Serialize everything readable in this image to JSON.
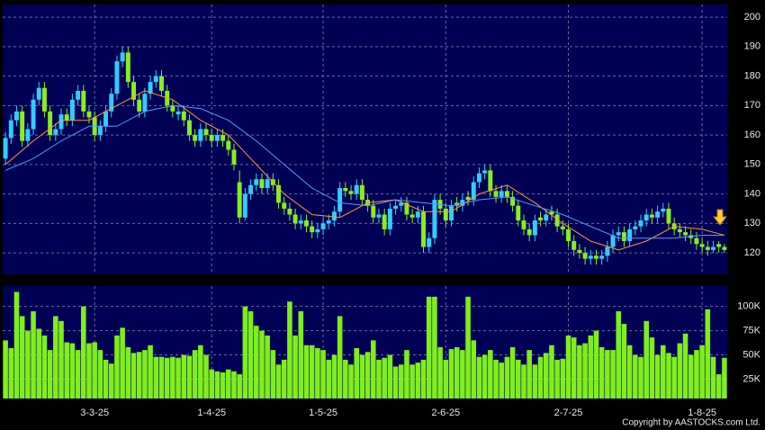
{
  "chart_data": [
    {
      "type": "candlestick",
      "up_color": "#33ccff",
      "down_color": "#88ee22",
      "grid": true,
      "categories": [
        null,
        null,
        null,
        null,
        null,
        null,
        null,
        null,
        null,
        null,
        null,
        null,
        null,
        null,
        null,
        null,
        "3-3-25",
        null,
        null,
        null,
        null,
        null,
        null,
        null,
        null,
        null,
        null,
        null,
        null,
        null,
        null,
        null,
        null,
        null,
        null,
        null,
        null,
        "1-4-25",
        null,
        null,
        null,
        null,
        null,
        null,
        null,
        null,
        null,
        null,
        null,
        null,
        null,
        null,
        null,
        null,
        null,
        null,
        null,
        "1-5-25",
        null,
        null,
        null,
        null,
        null,
        null,
        null,
        null,
        null,
        null,
        null,
        null,
        null,
        null,
        null,
        null,
        null,
        null,
        null,
        null,
        null,
        "2-6-25",
        null,
        null,
        null,
        null,
        null,
        null,
        null,
        null,
        null,
        null,
        null,
        null,
        null,
        null,
        null,
        null,
        null,
        null,
        null,
        null,
        null,
        "2-7-25",
        null,
        null,
        null,
        null,
        null,
        null,
        null,
        null,
        null,
        null,
        null,
        null,
        null,
        null,
        null,
        null,
        null,
        null,
        null,
        null,
        null,
        null,
        null,
        "1-8-25",
        null,
        null,
        null,
        null
      ],
      "values": [
        [
          152,
          161,
          150,
          159
        ],
        [
          159,
          167,
          157,
          165
        ],
        [
          165,
          170,
          163,
          168
        ],
        [
          168,
          170,
          156,
          158
        ],
        [
          158,
          164,
          156,
          162
        ],
        [
          162,
          174,
          160,
          172
        ],
        [
          172,
          178,
          170,
          176
        ],
        [
          176,
          178,
          166,
          168
        ],
        [
          168,
          170,
          158,
          160
        ],
        [
          160,
          164,
          158,
          162
        ],
        [
          162,
          169,
          160,
          167
        ],
        [
          167,
          169,
          163,
          165
        ],
        [
          165,
          174,
          163,
          172
        ],
        [
          172,
          177,
          170,
          175
        ],
        [
          175,
          177,
          166,
          168
        ],
        [
          168,
          170,
          164,
          166
        ],
        [
          166,
          168,
          158,
          160
        ],
        [
          160,
          165,
          158,
          163
        ],
        [
          163,
          170,
          161,
          168
        ],
        [
          168,
          176,
          166,
          174
        ],
        [
          174,
          187,
          172,
          185
        ],
        [
          185,
          190,
          183,
          188
        ],
        [
          188,
          190,
          176,
          178
        ],
        [
          178,
          180,
          170,
          172
        ],
        [
          172,
          174,
          166,
          168
        ],
        [
          168,
          176,
          166,
          174
        ],
        [
          174,
          180,
          172,
          178
        ],
        [
          178,
          182,
          176,
          180
        ],
        [
          180,
          182,
          173,
          175
        ],
        [
          175,
          177,
          168,
          170
        ],
        [
          170,
          172,
          166,
          168
        ],
        [
          167,
          170,
          165,
          168
        ],
        [
          168,
          170,
          163,
          165
        ],
        [
          165,
          167,
          158,
          160
        ],
        [
          160,
          162,
          156,
          158
        ],
        [
          158,
          164,
          156,
          162
        ],
        [
          162,
          164,
          158,
          160
        ],
        [
          160,
          162,
          156,
          158
        ],
        [
          158,
          162,
          156,
          160
        ],
        [
          160,
          162,
          156,
          158
        ],
        [
          158,
          160,
          153,
          155
        ],
        [
          155,
          157,
          148,
          150
        ],
        [
          144,
          148,
          130,
          132
        ],
        [
          132,
          142,
          131,
          140
        ],
        [
          140,
          145,
          138,
          143
        ],
        [
          143,
          147,
          141,
          145
        ],
        [
          145,
          147,
          140,
          142
        ],
        [
          142,
          147,
          140,
          145
        ],
        [
          145,
          147,
          141,
          143
        ],
        [
          143,
          145,
          135,
          137
        ],
        [
          137,
          139,
          133,
          135
        ],
        [
          135,
          137,
          131,
          133
        ],
        [
          133,
          135,
          128,
          130
        ],
        [
          130,
          133,
          128,
          131
        ],
        [
          131,
          133,
          127,
          129
        ],
        [
          129,
          131,
          125,
          127
        ],
        [
          127,
          130,
          125,
          128
        ],
        [
          128,
          132,
          126,
          130
        ],
        [
          130,
          133,
          128,
          131
        ],
        [
          131,
          136,
          129,
          134
        ],
        [
          134,
          144,
          132,
          142
        ],
        [
          142,
          144,
          139,
          141
        ],
        [
          141,
          143,
          138,
          140
        ],
        [
          140,
          145,
          138,
          143
        ],
        [
          143,
          145,
          136,
          138
        ],
        [
          138,
          140,
          134,
          136
        ],
        [
          136,
          138,
          130,
          132
        ],
        [
          132,
          135,
          130,
          133
        ],
        [
          133,
          135,
          126,
          128
        ],
        [
          128,
          137,
          126,
          135
        ],
        [
          135,
          138,
          133,
          136
        ],
        [
          136,
          139,
          134,
          137
        ],
        [
          137,
          139,
          131,
          133
        ],
        [
          133,
          135,
          130,
          132
        ],
        [
          132,
          136,
          130,
          134
        ],
        [
          134,
          136,
          120,
          122
        ],
        [
          122,
          127,
          120,
          125
        ],
        [
          125,
          140,
          123,
          138
        ],
        [
          138,
          140,
          133,
          135
        ],
        [
          135,
          137,
          129,
          131
        ],
        [
          131,
          138,
          129,
          136
        ],
        [
          137,
          139,
          134,
          136
        ],
        [
          136,
          140,
          134,
          138
        ],
        [
          139,
          141,
          136,
          138
        ],
        [
          138,
          146,
          136,
          144
        ],
        [
          144,
          149,
          142,
          147
        ],
        [
          147,
          150,
          145,
          148
        ],
        [
          148,
          150,
          139,
          141
        ],
        [
          141,
          143,
          137,
          139
        ],
        [
          139,
          143,
          137,
          141
        ],
        [
          141,
          143,
          137,
          139
        ],
        [
          139,
          141,
          134,
          136
        ],
        [
          136,
          138,
          129,
          131
        ],
        [
          131,
          133,
          126,
          128
        ],
        [
          128,
          130,
          124,
          126
        ],
        [
          126,
          133,
          124,
          131
        ],
        [
          132,
          134,
          129,
          131
        ],
        [
          131,
          135,
          129,
          133
        ],
        [
          134,
          136,
          131,
          133
        ],
        [
          133,
          135,
          127,
          129
        ],
        [
          129,
          131,
          126,
          128
        ],
        [
          128,
          130,
          122,
          124
        ],
        [
          124,
          126,
          119,
          121
        ],
        [
          121,
          123,
          118,
          120
        ],
        [
          120,
          122,
          116,
          118
        ],
        [
          118,
          121,
          116,
          119
        ],
        [
          119,
          121,
          116,
          118
        ],
        [
          118,
          121,
          116,
          119
        ],
        [
          119,
          124,
          117,
          122
        ],
        [
          122,
          128,
          120,
          126
        ],
        [
          126,
          129,
          124,
          127
        ],
        [
          127,
          129,
          122,
          124
        ],
        [
          124,
          130,
          122,
          128
        ],
        [
          128,
          131,
          126,
          129
        ],
        [
          129,
          133,
          127,
          131
        ],
        [
          131,
          135,
          129,
          133
        ],
        [
          133,
          135,
          130,
          132
        ],
        [
          132,
          136,
          130,
          134
        ],
        [
          134,
          137,
          132,
          135
        ],
        [
          135,
          137,
          128,
          130
        ],
        [
          130,
          132,
          126,
          128
        ],
        [
          128,
          130,
          125,
          127
        ],
        [
          127,
          129,
          124,
          126
        ],
        [
          126,
          128,
          123,
          125
        ],
        [
          125,
          127,
          121,
          123
        ],
        [
          123,
          125,
          120,
          122
        ],
        [
          122,
          124,
          119,
          121
        ],
        [
          121,
          124,
          120,
          122
        ],
        [
          123,
          124,
          120,
          122
        ],
        [
          122,
          123,
          120,
          121
        ]
      ],
      "series": [
        {
          "color": "#ff9933",
          "x": [
            0,
            5,
            10,
            15,
            20,
            25,
            30,
            35,
            40,
            45,
            50,
            55,
            60,
            65,
            70,
            75,
            80,
            85,
            90,
            95,
            100,
            105,
            110,
            115,
            120,
            125,
            129
          ],
          "values": [
            150,
            158,
            165,
            165,
            170,
            175,
            172,
            165,
            160,
            150,
            140,
            133,
            132,
            137,
            138,
            134,
            134,
            140,
            143,
            137,
            130,
            124,
            121,
            124,
            129,
            128,
            126
          ]
        },
        {
          "color": "#5599ff",
          "x": [
            0,
            5,
            10,
            15,
            20,
            25,
            30,
            35,
            40,
            45,
            50,
            55,
            60,
            65,
            70,
            75,
            80,
            85,
            90,
            95,
            100,
            105,
            110,
            115,
            120,
            125,
            129
          ],
          "values": [
            148,
            152,
            158,
            163,
            163,
            168,
            170,
            169,
            165,
            158,
            150,
            142,
            137,
            136,
            138,
            137,
            136,
            138,
            139,
            136,
            133,
            129,
            125,
            125,
            125,
            126,
            126
          ]
        }
      ],
      "ylim": [
        112.7,
        204.3
      ],
      "yticks": [
        120,
        130,
        140,
        150,
        160,
        170,
        180,
        190,
        200
      ]
    },
    {
      "type": "bar",
      "color": "#7fee1c",
      "grid": true,
      "values": [
        65000,
        57000,
        115000,
        90000,
        75000,
        95000,
        77000,
        70000,
        55000,
        90000,
        85000,
        63000,
        62000,
        55000,
        100000,
        62000,
        63000,
        55000,
        45000,
        41000,
        70000,
        78000,
        58000,
        52000,
        53000,
        55000,
        60000,
        48000,
        48000,
        47000,
        48000,
        47000,
        50000,
        49000,
        55000,
        60000,
        50000,
        35000,
        33000,
        32000,
        35000,
        33000,
        30000,
        100000,
        95000,
        80000,
        75000,
        70000,
        55000,
        40000,
        45000,
        105000,
        70000,
        95000,
        60000,
        60000,
        57000,
        55000,
        45000,
        50000,
        90000,
        45000,
        40000,
        57000,
        50000,
        53000,
        65000,
        45000,
        47000,
        50000,
        38000,
        40000,
        55000,
        40000,
        42000,
        45000,
        110000,
        110000,
        58000,
        45000,
        56000,
        58000,
        55000,
        110000,
        65000,
        48000,
        50000,
        55000,
        45000,
        42000,
        48000,
        58000,
        45000,
        40000,
        55000,
        40000,
        48000,
        52000,
        60000,
        45000,
        46000,
        70000,
        68000,
        60000,
        62000,
        70000,
        75000,
        58000,
        55000,
        55000,
        95000,
        82000,
        60000,
        50000,
        48000,
        85000,
        68000,
        50000,
        60000,
        52000,
        48000,
        62000,
        72000,
        50000,
        55000,
        60000,
        97000,
        48000,
        30000,
        47000
      ],
      "ylim": [
        5000,
        121000
      ],
      "yticks": [
        {
          "value": 25000,
          "label": "25K"
        },
        {
          "value": 50000,
          "label": "50K"
        },
        {
          "value": 75000,
          "label": "75K"
        },
        {
          "value": 100000,
          "label": "100K"
        }
      ]
    }
  ],
  "footer": "Copyright by AASTOCKS.com Ltd."
}
